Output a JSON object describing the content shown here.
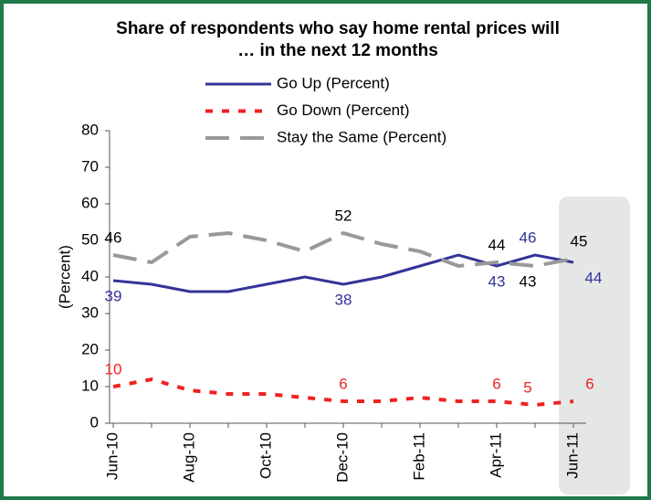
{
  "chart_data": {
    "type": "line",
    "title": "Share of respondents who say home rental prices will … in  the next 12 months",
    "y_label": "(Percent)",
    "categories": [
      "Jun-10",
      null,
      "Aug-10",
      null,
      "Oct-10",
      null,
      "Dec-10",
      null,
      "Feb-11",
      null,
      "Apr-11",
      null,
      "Jun-11"
    ],
    "series": [
      {
        "name": "Go Up (Percent)",
        "color": "#333399",
        "dash": "solid",
        "values": [
          39,
          38,
          36,
          36,
          38,
          40,
          38,
          40,
          43,
          46,
          43,
          46,
          44
        ]
      },
      {
        "name": "Go Down (Percent)",
        "color": "#ee2222",
        "dash": "dotted",
        "values": [
          10,
          12,
          9,
          8,
          8,
          7,
          6,
          6,
          7,
          6,
          6,
          5,
          6
        ]
      },
      {
        "name": "Stay the Same (Percent)",
        "color": "#999999",
        "dash": "dashed",
        "values": [
          46,
          44,
          51,
          52,
          50,
          47,
          52,
          49,
          47,
          43,
          44,
          43,
          45
        ]
      }
    ],
    "labeled_points": [
      0,
      6,
      10,
      11,
      12
    ],
    "ylim": [
      0,
      80
    ],
    "yticks": [
      0,
      10,
      20,
      30,
      40,
      50,
      60,
      70,
      80
    ],
    "grid": false
  }
}
